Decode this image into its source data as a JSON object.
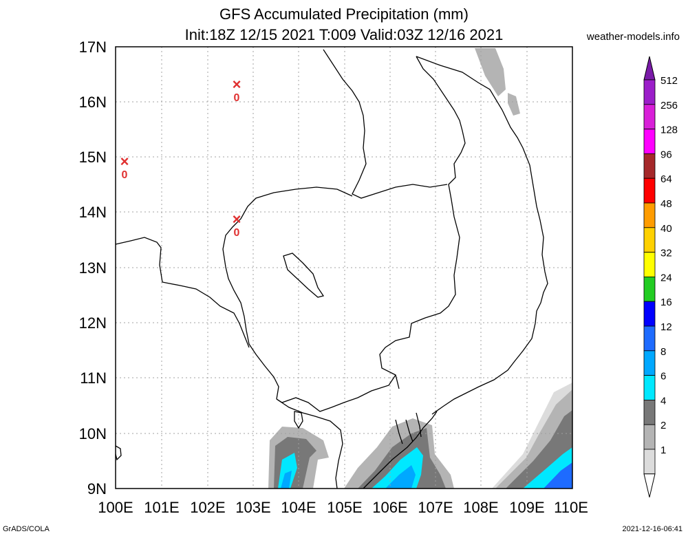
{
  "title": {
    "line1": "GFS Accumulated Precipitation (mm)",
    "line2": "Init:18Z 12/15 2021 T:009 Valid:03Z 12/16 2021"
  },
  "site": "weather-models.info",
  "footer": {
    "left": "GrADS/COLA",
    "right": "2021-12-16-06:41"
  },
  "lat_labels": [
    "17N",
    "16N",
    "15N",
    "14N",
    "13N",
    "12N",
    "11N",
    "10N",
    "9N"
  ],
  "lon_labels": [
    "100E",
    "101E",
    "102E",
    "103E",
    "104E",
    "105E",
    "106E",
    "107E",
    "108E",
    "109E",
    "110E"
  ],
  "colorbar": {
    "levels": [
      "512",
      "256",
      "128",
      "96",
      "64",
      "48",
      "40",
      "32",
      "24",
      "16",
      "12",
      "8",
      "6",
      "4",
      "2",
      "1"
    ],
    "colors": [
      "#7a1aa8",
      "#9b1ec9",
      "#d81fd8",
      "#ff00ff",
      "#a5282a",
      "#ff0000",
      "#ff9c00",
      "#ffd100",
      "#ffff00",
      "#22cc22",
      "#0000ff",
      "#1e6bff",
      "#00a8ff",
      "#00e8ff",
      "#787878",
      "#b4b4b4",
      "#dcdcdc",
      "#ffffff"
    ]
  },
  "markers": [
    {
      "x_label": "×",
      "o_label": "0"
    },
    {
      "x_label": "×",
      "o_label": "0"
    },
    {
      "x_label": "×",
      "o_label": "0"
    }
  ]
}
